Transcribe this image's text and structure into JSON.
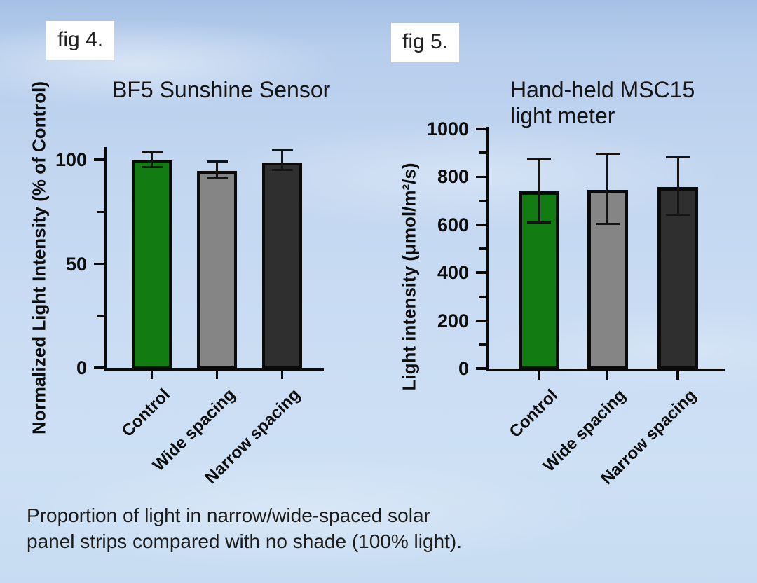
{
  "figure_labels": {
    "fig4": "fig 4.",
    "fig5": "fig 5."
  },
  "caption": "Proportion of light in narrow/wide-spaced solar\npanel strips compared with no shade (100% light).",
  "colors": {
    "control_green": "#127c12",
    "wide_gray": "#858585",
    "narrow_dark": "#2f2f2f",
    "axis_black": "#0a0a0a",
    "sky_blue": "#c2d6f0"
  },
  "chart_data": [
    {
      "id": "bf5",
      "type": "bar",
      "title": "BF5 Sunshine Sensor",
      "xlabel": "",
      "ylabel": "Normalized Light Intensity (% of Control)",
      "categories": [
        "Control",
        "Wide spacing",
        "Narrow spacing"
      ],
      "values": [
        100,
        94.5,
        98.5
      ],
      "error_low": [
        96.5,
        91,
        95
      ],
      "error_high": [
        103.5,
        99,
        104.5
      ],
      "bar_colors": [
        "#127c12",
        "#858585",
        "#2f2f2f"
      ],
      "ylim": [
        0,
        106
      ],
      "yticks_major": [
        0,
        50,
        100
      ],
      "ytick_labels": [
        "0",
        "50",
        "100"
      ],
      "yticks_minor": [
        25,
        75
      ],
      "grid": false,
      "legend": null
    },
    {
      "id": "msc15",
      "type": "bar",
      "title": "Hand-held MSC15\nlight meter",
      "xlabel": "",
      "ylabel": "Light intensity (μmol/m²/s)",
      "categories": [
        "Control",
        "Wide spacing",
        "Narrow spacing"
      ],
      "values": [
        740,
        745,
        757
      ],
      "error_low": [
        610,
        603,
        643
      ],
      "error_high": [
        872,
        895,
        881
      ],
      "bar_colors": [
        "#127c12",
        "#858585",
        "#2f2f2f"
      ],
      "ylim": [
        0,
        1010
      ],
      "yticks_major": [
        0,
        200,
        400,
        600,
        800,
        1000
      ],
      "ytick_labels": [
        "0",
        "200",
        "400",
        "600",
        "800",
        "1000"
      ],
      "yticks_minor": [
        100,
        300,
        500,
        700,
        900
      ],
      "grid": false,
      "legend": null
    }
  ]
}
